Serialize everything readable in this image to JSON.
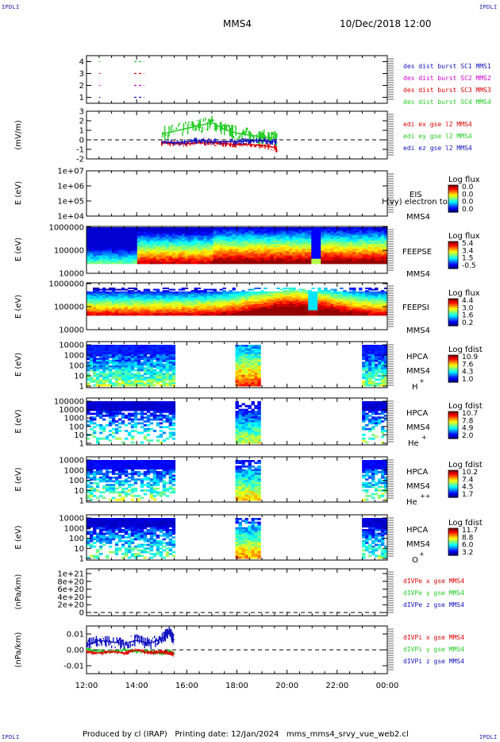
{
  "header": {
    "corner_tl": "IPDLI",
    "corner_tr": "IPDLI",
    "corner_bl": "IPDLI",
    "corner_br": "IPDLI",
    "spacecraft": "MMS4",
    "date": "10/Dec/2018 12:00"
  },
  "footer": {
    "text": "Produced by cl (IRAP)   Printing date: 12/Jan/2024   mms_mms4_srvy_vue_web2.cl"
  },
  "colors": {
    "blue": "#1111c0",
    "red": "#dd0000",
    "green": "#22cc22",
    "magenta": "#d400d4",
    "axis": "#000000"
  },
  "chart_data": [
    {
      "type": "line",
      "panel": "burst",
      "yticks": [
        "1",
        "2",
        "3",
        "4"
      ],
      "ylim": [
        0.5,
        4.5
      ],
      "legend": [
        {
          "text": "des dist burst SC1 MMS1",
          "color": "#1111c0"
        },
        {
          "text": "des dist burst SC2 MMS2",
          "color": "#d400d4"
        },
        {
          "text": "des dist burst SC3 MMS3",
          "color": "#dd0000"
        },
        {
          "text": "des dist burst SC4 MMS4",
          "color": "#22cc22"
        }
      ],
      "segments": [
        {
          "sc": 4,
          "x": [
            12.5,
            12.55
          ],
          "color": "#22cc22"
        },
        {
          "sc": 4,
          "x": [
            13.9,
            14.3
          ],
          "color": "#22cc22"
        },
        {
          "sc": 3,
          "x": [
            12.5,
            12.55
          ],
          "color": "#dd0000"
        },
        {
          "sc": 3,
          "x": [
            13.9,
            14.3
          ],
          "color": "#dd0000"
        },
        {
          "sc": 2,
          "x": [
            12.5,
            12.55
          ],
          "color": "#d400d4"
        },
        {
          "sc": 2,
          "x": [
            13.9,
            14.3
          ],
          "color": "#d400d4"
        },
        {
          "sc": 1,
          "x": [
            12.5,
            12.55
          ],
          "color": "#1111c0"
        },
        {
          "sc": 1,
          "x": [
            13.9,
            14.3
          ],
          "color": "#1111c0"
        }
      ]
    },
    {
      "type": "line",
      "panel": "edi",
      "ylabel": "(mV/m)",
      "yticks": [
        "-2",
        "-1",
        "0",
        "1",
        "2",
        "3"
      ],
      "ylim": [
        -2,
        3
      ],
      "legend": [
        {
          "text": "edi ex gse l2 MMS4",
          "color": "#dd0000"
        },
        {
          "text": "edi ey gse l2 MMS4",
          "color": "#22cc22"
        },
        {
          "text": "edi ez gse l2 MMS4",
          "color": "#1111c0"
        }
      ],
      "series": [
        {
          "name": "edi ex gse l2 MMS4",
          "color": "#dd0000",
          "x": [
            15.0,
            15.5,
            16.0,
            16.5,
            17.0,
            17.5,
            18.0,
            18.5,
            19.0,
            19.5,
            19.6
          ],
          "y": [
            -0.3,
            -0.4,
            -0.4,
            -0.3,
            -0.3,
            -0.4,
            -0.5,
            -0.5,
            -0.6,
            -0.8,
            -1.1
          ]
        },
        {
          "name": "edi ey gse l2 MMS4",
          "color": "#22cc22",
          "x": [
            15.0,
            15.5,
            16.0,
            16.5,
            17.0,
            17.5,
            18.0,
            18.5,
            19.0,
            19.5,
            19.6
          ],
          "y": [
            0.6,
            0.9,
            1.2,
            1.5,
            1.8,
            1.1,
            0.7,
            0.5,
            0.3,
            0.2,
            0.1
          ]
        },
        {
          "name": "edi ez gse l2 MMS4",
          "color": "#1111c0",
          "x": [
            15.0,
            15.5,
            16.0,
            16.5,
            17.0,
            17.5,
            18.0,
            18.5,
            19.0,
            19.5,
            19.6
          ],
          "y": [
            -0.2,
            -0.3,
            -0.2,
            -0.1,
            -0.2,
            -0.2,
            -0.2,
            -0.1,
            -0.1,
            -0.2,
            -0.1
          ]
        }
      ]
    },
    {
      "type": "heatmap",
      "panel": "eis",
      "ylabel": "E (eV)",
      "yticks": [
        "1e+04",
        "1e+05",
        "1e+06",
        "1e+07"
      ],
      "labels": [
        "EIS",
        "MMS4"
      ],
      "overlay_text": "l (vy) electron to",
      "colorbar_title": "Log flux",
      "colorbar_ticks": [
        "0.0",
        "0.0",
        "0.0",
        "0.0"
      ]
    },
    {
      "type": "heatmap",
      "panel": "feepse",
      "ylabel": "E (eV)",
      "yticks": [
        "10000",
        "100000",
        "1000000"
      ],
      "labels": [
        "FEEPSE",
        "MMS4"
      ],
      "colorbar_title": "Log flux",
      "colorbar_ticks": [
        "5.4",
        "3.4",
        "1.5",
        "-0.5"
      ]
    },
    {
      "type": "heatmap",
      "panel": "feepsi",
      "ylabel": "E (eV)",
      "yticks": [
        "10000",
        "100000",
        "1000000"
      ],
      "labels": [
        "FEEPSI",
        "MMS4"
      ],
      "colorbar_title": "Log flux",
      "colorbar_ticks": [
        "4.4",
        "3.0",
        "1.6",
        "0.2"
      ]
    },
    {
      "type": "heatmap",
      "panel": "hpca_h",
      "ylabel": "E (eV)",
      "yticks": [
        "1",
        "10",
        "100",
        "1000",
        "10000"
      ],
      "labels": [
        "HPCA",
        "MMS4",
        "H",
        "+"
      ],
      "colorbar_title": "Log fdist",
      "colorbar_ticks": [
        "10.9",
        "7.6",
        "4.3",
        "1.0"
      ],
      "intervals": [
        [
          12.0,
          15.5
        ],
        [
          18.0,
          19.0
        ],
        [
          23.0,
          24.0
        ]
      ]
    },
    {
      "type": "heatmap",
      "panel": "hpca_he1",
      "ylabel": "E (eV)",
      "yticks": [
        "1",
        "10",
        "100",
        "1000",
        "10000",
        "100000"
      ],
      "labels": [
        "HPCA",
        "MMS4",
        "He",
        "+"
      ],
      "colorbar_title": "Log fdist",
      "colorbar_ticks": [
        "10.7",
        "7.8",
        "4.9",
        "2.0"
      ],
      "intervals": [
        [
          12.0,
          15.5
        ],
        [
          18.0,
          19.0
        ],
        [
          23.0,
          24.0
        ]
      ]
    },
    {
      "type": "heatmap",
      "panel": "hpca_he2",
      "ylabel": "E (eV)",
      "yticks": [
        "1",
        "10",
        "100",
        "1000",
        "10000"
      ],
      "labels": [
        "HPCA",
        "MMS4",
        "He",
        "++"
      ],
      "colorbar_title": "Log fdist",
      "colorbar_ticks": [
        "10.2",
        "7.4",
        "4.5",
        "1.7"
      ],
      "intervals": [
        [
          12.0,
          15.5
        ],
        [
          18.0,
          19.0
        ],
        [
          23.0,
          24.0
        ]
      ]
    },
    {
      "type": "heatmap",
      "panel": "hpca_o",
      "ylabel": "E (eV)",
      "yticks": [
        "1",
        "10",
        "100",
        "1000",
        "10000"
      ],
      "labels": [
        "HPCA",
        "MMS4",
        "O",
        "+"
      ],
      "colorbar_title": "Log fdist",
      "colorbar_ticks": [
        "11.7",
        "8.8",
        "6.0",
        "3.2"
      ],
      "intervals": [
        [
          12.0,
          15.5
        ],
        [
          18.0,
          19.0
        ],
        [
          23.0,
          24.0
        ]
      ]
    },
    {
      "type": "line",
      "panel": "divpe",
      "ylabel": "(nPa/km)",
      "yticks": [
        "0",
        "2e+20",
        "4e+20",
        "6e+20",
        "8e+20",
        "1e+21"
      ],
      "ylim": [
        0,
        1e+21
      ],
      "legend": [
        {
          "text": "dIVPe x gse MMS4",
          "color": "#dd0000"
        },
        {
          "text": "dIVPe y gse MMS4",
          "color": "#22cc22"
        },
        {
          "text": "dIVPe z gse MMS4",
          "color": "#1111c0"
        }
      ]
    },
    {
      "type": "line",
      "panel": "divpi",
      "ylabel": "(nPa/km)",
      "yticks": [
        "-0.01",
        "0.00",
        "0.01"
      ],
      "ylim": [
        -0.015,
        0.015
      ],
      "legend": [
        {
          "text": "dIVPi x gse MMS4",
          "color": "#dd0000"
        },
        {
          "text": "dIVPi y gse MMS4",
          "color": "#22cc22"
        },
        {
          "text": "dIVPi z gse MMS4",
          "color": "#1111c0"
        }
      ],
      "series": [
        {
          "name": "dIVPi z gse MMS4",
          "color": "#1111c0",
          "x": [
            12.0,
            12.5,
            13.0,
            13.5,
            14.0,
            14.5,
            15.0,
            15.3,
            15.5
          ],
          "y": [
            0.003,
            0.006,
            0.005,
            0.004,
            0.006,
            0.004,
            0.007,
            0.011,
            0.006
          ]
        },
        {
          "name": "dIVPi y gse MMS4",
          "color": "#22cc22",
          "x": [
            12.0,
            12.5,
            13.0,
            13.5,
            14.0,
            14.5,
            15.0,
            15.3,
            15.5
          ],
          "y": [
            0.0,
            -0.001,
            -0.001,
            0.0,
            -0.001,
            -0.001,
            -0.002,
            -0.001,
            -0.002
          ]
        },
        {
          "name": "dIVPi x gse MMS4",
          "color": "#dd0000",
          "x": [
            12.0,
            12.5,
            13.0,
            13.5,
            14.0,
            14.5,
            15.0,
            15.3,
            15.5
          ],
          "y": [
            -0.001,
            -0.002,
            -0.001,
            -0.002,
            0.0,
            -0.002,
            -0.001,
            -0.002,
            -0.003
          ]
        }
      ]
    },
    {
      "type": "axis",
      "panel": "time_axis",
      "xticks": [
        "12:00",
        "14:00",
        "16:00",
        "18:00",
        "20:00",
        "22:00",
        "00:00"
      ],
      "xlim": [
        12,
        24
      ]
    }
  ]
}
